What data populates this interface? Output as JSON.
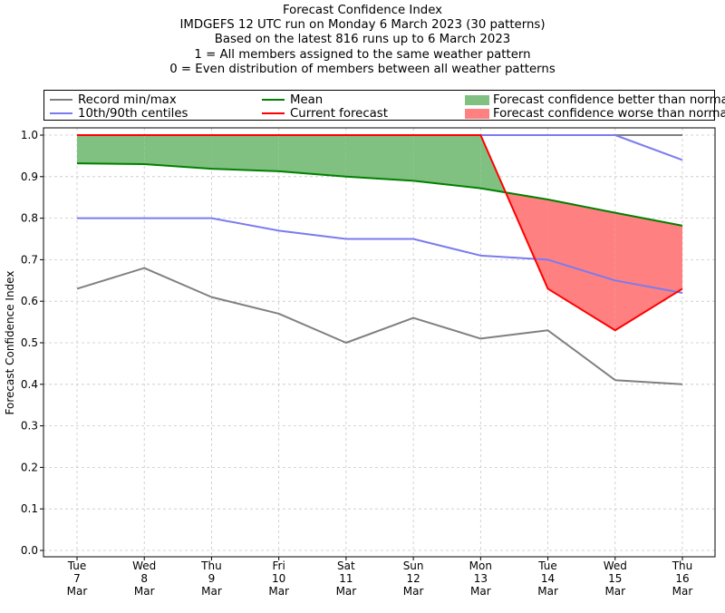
{
  "titles": [
    "Forecast Confidence Index",
    "IMDGEFS 12 UTC run on Monday 6 March 2023 (30 patterns)",
    "Based on the latest 816 runs up to 6 March 2023",
    "1 = All members assigned to the same weather pattern",
    "0 = Even distribution of members between all weather patterns"
  ],
  "legend": [
    {
      "label": "Record min/max",
      "kind": "line",
      "color": "#808080"
    },
    {
      "label": "10th/90th centiles",
      "kind": "line",
      "color": "#7b7bef"
    },
    {
      "label": "Mean",
      "kind": "line",
      "color": "#008000"
    },
    {
      "label": "Current forecast",
      "kind": "line",
      "color": "#ff0000"
    },
    {
      "label": "Forecast confidence better than normal",
      "kind": "patch",
      "color": "#80c080"
    },
    {
      "label": "Forecast confidence worse than normal",
      "kind": "patch",
      "color": "#ff8080"
    }
  ],
  "chart_data": {
    "type": "line",
    "title": "Forecast Confidence Index",
    "ylabel": "Forecast Confidence Index",
    "xlabel": "",
    "ylim": [
      0.0,
      1.0
    ],
    "yticks": [
      "0.0",
      "0.1",
      "0.2",
      "0.3",
      "0.4",
      "0.5",
      "0.6",
      "0.7",
      "0.8",
      "0.9",
      "1.0"
    ],
    "grid": true,
    "categories": [
      [
        "Tue",
        "7",
        "Mar"
      ],
      [
        "Wed",
        "8",
        "Mar"
      ],
      [
        "Thu",
        "9",
        "Mar"
      ],
      [
        "Fri",
        "10",
        "Mar"
      ],
      [
        "Sat",
        "11",
        "Mar"
      ],
      [
        "Sun",
        "12",
        "Mar"
      ],
      [
        "Mon",
        "13",
        "Mar"
      ],
      [
        "Tue",
        "14",
        "Mar"
      ],
      [
        "Wed",
        "15",
        "Mar"
      ],
      [
        "Thu",
        "16",
        "Mar"
      ]
    ],
    "series": [
      {
        "name": "Record max",
        "color": "#808080",
        "values": [
          1.0,
          1.0,
          1.0,
          1.0,
          1.0,
          1.0,
          1.0,
          1.0,
          1.0,
          1.0
        ]
      },
      {
        "name": "Record min",
        "color": "#808080",
        "values": [
          0.63,
          0.68,
          0.61,
          0.57,
          0.5,
          0.56,
          0.51,
          0.53,
          0.41,
          0.4
        ]
      },
      {
        "name": "90th centile",
        "color": "#7b7bef",
        "values": [
          1.0,
          1.0,
          1.0,
          1.0,
          1.0,
          1.0,
          1.0,
          1.0,
          1.0,
          0.94
        ]
      },
      {
        "name": "10th centile",
        "color": "#7b7bef",
        "values": [
          0.8,
          0.8,
          0.8,
          0.77,
          0.75,
          0.75,
          0.71,
          0.7,
          0.65,
          0.62
        ]
      },
      {
        "name": "Mean",
        "color": "#008000",
        "values": [
          0.932,
          0.93,
          0.919,
          0.913,
          0.9,
          0.89,
          0.872,
          0.845,
          0.813,
          0.782
        ]
      },
      {
        "name": "Current forecast",
        "color": "#ff0000",
        "values": [
          1.0,
          1.0,
          1.0,
          1.0,
          1.0,
          1.0,
          1.0,
          0.63,
          0.53,
          0.63
        ]
      }
    ],
    "fill_better_color": "#80c080",
    "fill_worse_color": "#ff8080"
  }
}
